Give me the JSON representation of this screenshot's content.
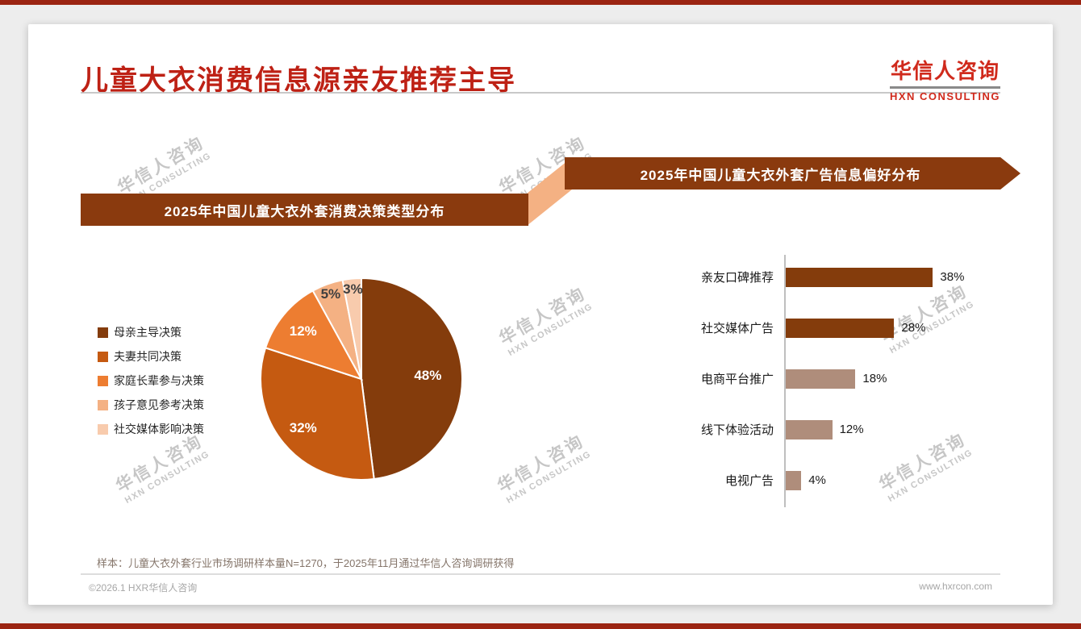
{
  "page": {
    "title": "儿童大衣消费信息源亲友推荐主导",
    "sample_note": "样本：儿童大衣外套行业市场调研样本量N=1270，于2025年11月通过华信人咨询调研获得",
    "footer_left": "©2026.1 HXR华信人咨询",
    "footer_right": "www.hxrcon.com"
  },
  "logo": {
    "zh": "华信人咨询",
    "en": "HXN CONSULTING"
  },
  "watermark": {
    "line1": "华信人咨询",
    "line2": "HXN CONSULTING"
  },
  "colors": {
    "accent_red": "#be2115",
    "banner_brown": "#8a3a0e",
    "connector_peach": "#f4b183",
    "bar_taupe": "#af8d7b",
    "strip_red": "#9b2412"
  },
  "chart_data": [
    {
      "type": "pie",
      "title": "2025年中国儿童大衣外套消费决策类型分布",
      "labels": [
        "母亲主导决策",
        "夫妻共同决策",
        "家庭长辈参与决策",
        "孩子意见参考决策",
        "社交媒体影响决策"
      ],
      "values": [
        48,
        32,
        12,
        5,
        3
      ],
      "unit": "%",
      "colors": [
        "#843c0c",
        "#c55a11",
        "#ed7d31",
        "#f4b183",
        "#f8cbad"
      ],
      "legend_position": "left",
      "start_angle_deg": 0,
      "direction": "clockwise"
    },
    {
      "type": "bar",
      "title": "2025年中国儿童大衣外套广告信息偏好分布",
      "orientation": "horizontal",
      "categories": [
        "亲友口碑推荐",
        "社交媒体广告",
        "电商平台推广",
        "线下体验活动",
        "电视广告"
      ],
      "values": [
        38,
        28,
        18,
        12,
        4
      ],
      "unit": "%",
      "colors": [
        "#843c0c",
        "#843c0c",
        "#af8d7b",
        "#af8d7b",
        "#af8d7b"
      ],
      "xlim": [
        0,
        40
      ],
      "value_labels": "outside-right"
    }
  ]
}
